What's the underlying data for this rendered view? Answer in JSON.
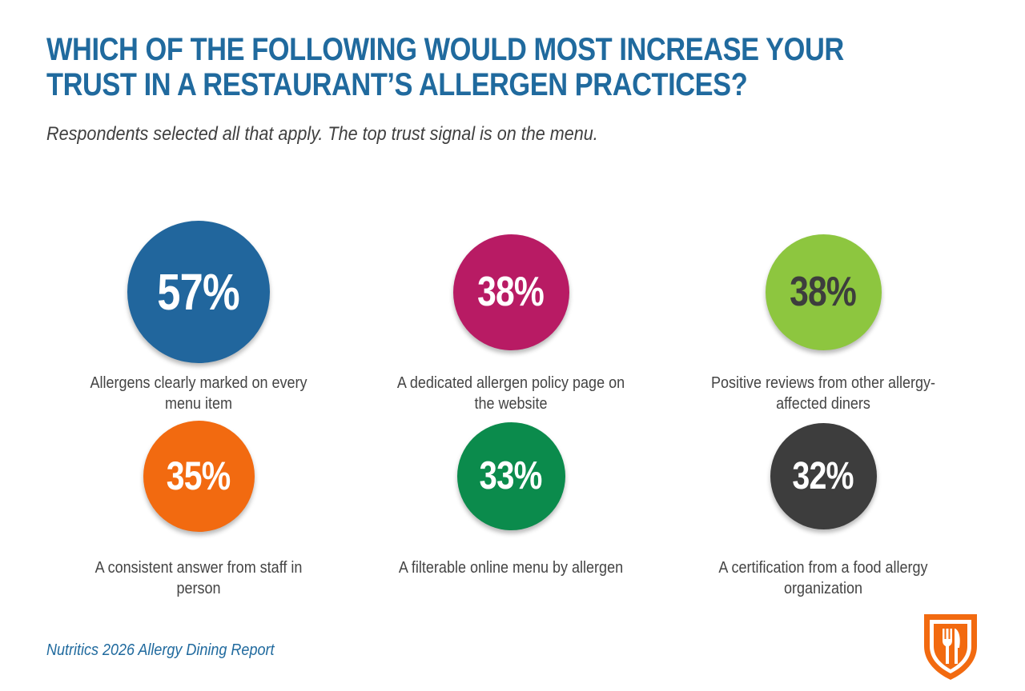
{
  "title": "WHICH OF THE FOLLOWING WOULD MOST INCREASE YOUR TRUST IN A RESTAURANT’S ALLERGEN PRACTICES?",
  "subtitle": "Respondents selected all that apply. The top trust signal is on the menu.",
  "footer": "Nutritics 2026 Allergy Dining Report",
  "logo_icon": "shield-fork-knife-icon",
  "chart_data": {
    "type": "bubble",
    "title": "WHICH OF THE FOLLOWING WOULD MOST INCREASE YOUR TRUST IN A RESTAURANT’S ALLERGEN PRACTICES?",
    "unit": "%",
    "categories": [
      "Allergens clearly marked on every menu item",
      "A dedicated allergen policy page on the website",
      "Positive reviews from other allergy-affected diners",
      "A consistent answer from staff in person",
      "A filterable online menu by allergen",
      "A certification from a food allergy organization"
    ],
    "values": [
      57,
      38,
      38,
      35,
      33,
      32
    ],
    "value_labels": [
      "57%",
      "38%",
      "38%",
      "35%",
      "33%",
      "32%"
    ],
    "colors": [
      "#21669d",
      "#b81b64",
      "#8dc63f",
      "#f26a10",
      "#0b8b4c",
      "#3d3d3d"
    ],
    "text_colors": [
      "#ffffff",
      "#ffffff",
      "#3d3d3d",
      "#ffffff",
      "#ffffff",
      "#ffffff"
    ],
    "legend": "none",
    "grid": false
  },
  "colors": {
    "title": "#206a9e",
    "footer": "#206a9e",
    "logo": "#f26a10"
  }
}
